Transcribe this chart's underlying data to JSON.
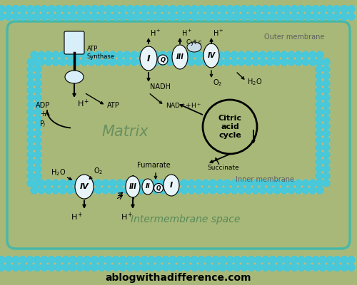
{
  "bg_color": "#a8b878",
  "membrane_stripe_color": "#c8b878",
  "membrane_dot_color": "#48c8d8",
  "inner_bg": "#98b068",
  "matrix_bg": "#98b868",
  "title": "ablogwithadifference.com",
  "title_fontsize": 10,
  "outer_membrane_label": "Outer membrane",
  "inner_membrane_label": "Inner membrane",
  "intermembrane_label": "Intermembrane space",
  "matrix_label": "Matrix",
  "complex_fill": "#e8f4f8",
  "atp_fill": "#d8eef8"
}
